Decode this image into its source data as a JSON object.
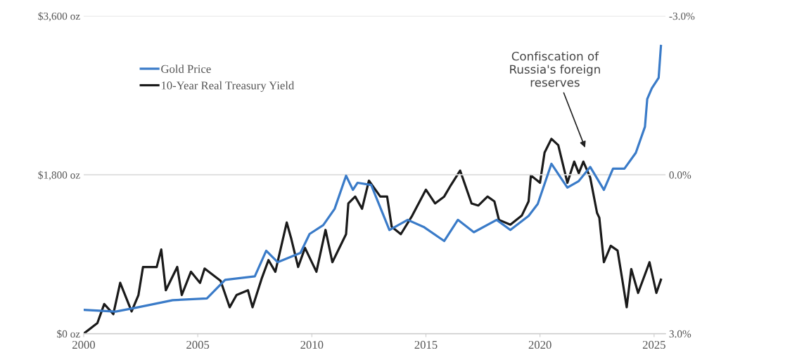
{
  "chart_data": {
    "type": "line",
    "annotations": [
      "Confiscation of\nRussia's foreign\nreserves"
    ],
    "series": [
      {
        "name": "Gold Price",
        "color": "#3a7bc8",
        "x": [
          2000.0,
          2001.4,
          2002.4,
          2003.9,
          2005.4,
          2006.2,
          2007.5,
          2008.0,
          2008.5,
          2009.5,
          2009.9,
          2010.5,
          2011.0,
          2011.5,
          2011.8,
          2012.0,
          2012.6,
          2013.4,
          2014.2,
          2014.9,
          2015.8,
          2016.4,
          2017.1,
          2018.1,
          2018.7,
          2019.5,
          2019.9,
          2020.5,
          2021.2,
          2021.7,
          2022.2,
          2022.8,
          2023.2,
          2023.7,
          2024.2,
          2024.6,
          2024.7,
          2024.9,
          2025.2,
          2025.3
        ],
        "values": [
          270,
          250,
          300,
          380,
          400,
          610,
          650,
          940,
          810,
          915,
          1130,
          1230,
          1415,
          1790,
          1630,
          1710,
          1685,
          1175,
          1290,
          1210,
          1050,
          1290,
          1150,
          1290,
          1175,
          1335,
          1470,
          1925,
          1655,
          1730,
          1890,
          1630,
          1870,
          1870,
          2050,
          2345,
          2660,
          2780,
          2900,
          3260
        ]
      },
      {
        "name": "10-Year Real Treasury Yield",
        "color": "#1a1a1a",
        "axis": "y2",
        "x": [
          2000.0,
          2000.6,
          2000.9,
          2001.3,
          2001.6,
          2002.1,
          2002.4,
          2002.6,
          2003.2,
          2003.4,
          2003.6,
          2004.1,
          2004.3,
          2004.7,
          2005.1,
          2005.3,
          2006.0,
          2006.4,
          2006.7,
          2007.2,
          2007.4,
          2007.8,
          2008.1,
          2008.4,
          2008.9,
          2009.1,
          2009.4,
          2009.7,
          2010.2,
          2010.6,
          2010.9,
          2011.5,
          2011.6,
          2011.9,
          2012.2,
          2012.5,
          2013.0,
          2013.3,
          2013.5,
          2013.9,
          2014.4,
          2015.0,
          2015.4,
          2015.8,
          2016.1,
          2016.5,
          2017.0,
          2017.3,
          2017.7,
          2018.0,
          2018.2,
          2018.7,
          2019.2,
          2019.5,
          2019.6,
          2020.0,
          2020.2,
          2020.5,
          2020.8,
          2021.2,
          2021.5,
          2021.7,
          2021.9,
          2022.2,
          2022.5,
          2022.6,
          2022.8,
          2023.1,
          2023.4,
          2023.6,
          2023.8,
          2024.0,
          2024.3,
          2024.8,
          2025.1,
          2025.3
        ],
        "values": [
          3.0,
          2.8,
          2.44,
          2.63,
          2.04,
          2.58,
          2.27,
          1.74,
          1.74,
          1.41,
          2.18,
          1.74,
          2.27,
          1.83,
          2.04,
          1.77,
          2.0,
          2.5,
          2.27,
          2.18,
          2.5,
          1.96,
          1.61,
          1.83,
          0.9,
          1.21,
          1.74,
          1.38,
          1.83,
          1.04,
          1.65,
          1.12,
          0.54,
          0.41,
          0.64,
          0.11,
          0.41,
          0.41,
          0.98,
          1.12,
          0.77,
          0.28,
          0.54,
          0.41,
          0.19,
          -0.08,
          0.54,
          0.58,
          0.41,
          0.5,
          0.85,
          0.94,
          0.77,
          0.5,
          0.01,
          0.15,
          -0.42,
          -0.68,
          -0.56,
          0.15,
          -0.25,
          -0.03,
          -0.25,
          0.05,
          0.72,
          0.81,
          1.65,
          1.34,
          1.43,
          1.96,
          2.5,
          1.78,
          2.23,
          1.65,
          2.23,
          1.98
        ]
      }
    ],
    "xlim": [
      2000,
      2025.5
    ],
    "xticks": [
      2000,
      2005,
      2010,
      2015,
      2020,
      2025
    ],
    "ylim": [
      0,
      3600
    ],
    "yticks": [
      {
        "value": 0,
        "label": "$0 oz"
      },
      {
        "value": 1800,
        "label": "$1,800 oz"
      },
      {
        "value": 3600,
        "label": "$3,600 oz"
      }
    ],
    "y2lim": [
      3,
      -3
    ],
    "y2ticks": [
      {
        "value": -3,
        "label": "-3.0%"
      },
      {
        "value": 0,
        "label": "0.0%"
      },
      {
        "value": 3,
        "label": "3.0%"
      }
    ],
    "grid": "y",
    "legend": "top left",
    "line_style": "solid",
    "marker": "none"
  }
}
